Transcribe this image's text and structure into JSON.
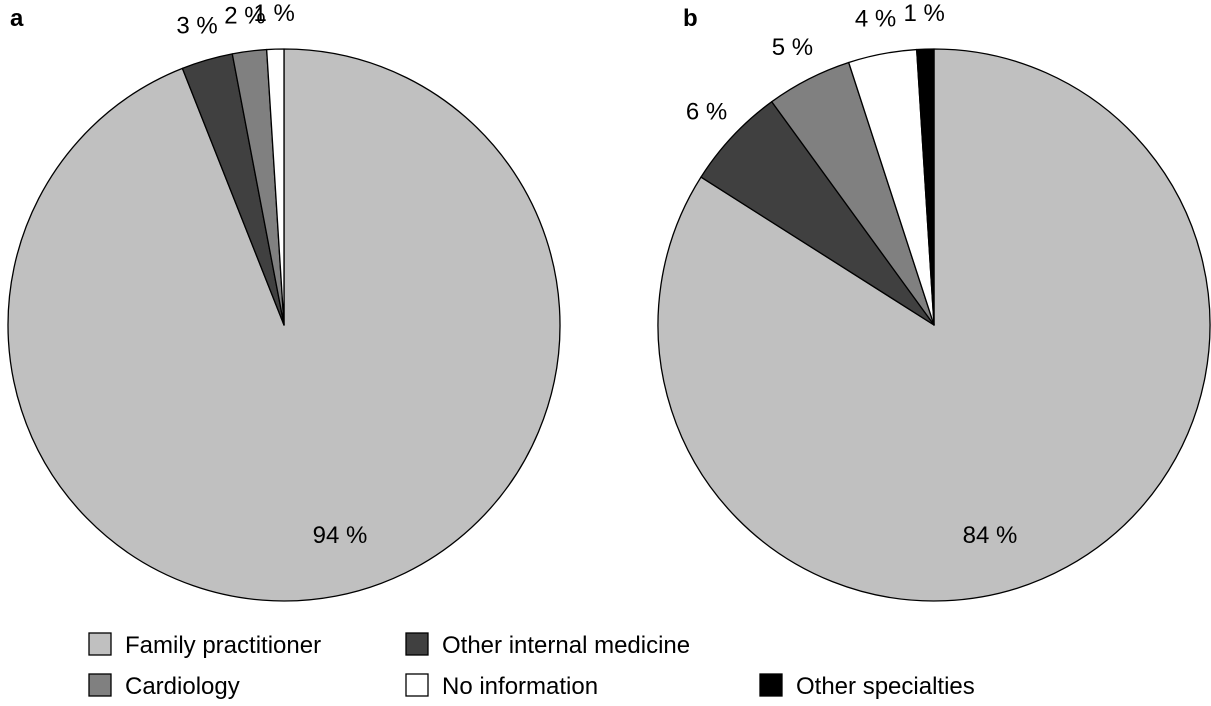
{
  "chart_data": [
    {
      "type": "pie",
      "panel_label": "a",
      "categories": [
        "Family practitioner",
        "Other internal medicine",
        "Cardiology",
        "No information"
      ],
      "values": [
        94,
        3,
        2,
        1
      ],
      "labels": [
        "94 %",
        "3 %",
        "2 %",
        "1 %"
      ],
      "start_angle": "top",
      "direction": "clockwise"
    },
    {
      "type": "pie",
      "panel_label": "b",
      "categories": [
        "Family practitioner",
        "Other internal medicine",
        "Cardiology",
        "No information",
        "Other specialties"
      ],
      "values": [
        84,
        6,
        5,
        4,
        1
      ],
      "labels": [
        "84 %",
        "6 %",
        "5 %",
        "4 %",
        "1 %"
      ],
      "start_angle": "top",
      "direction": "clockwise"
    }
  ],
  "legend": {
    "placement": "bottom",
    "items": [
      {
        "label": "Family practitioner",
        "color": "#c0c0c0"
      },
      {
        "label": "Other internal medicine",
        "color": "#404040"
      },
      {
        "label": "Cardiology",
        "color": "#808080"
      },
      {
        "label": "No information",
        "color": "#ffffff"
      },
      {
        "label": "Other specialties",
        "color": "#000000"
      }
    ]
  },
  "colors": {
    "Family practitioner": "#c0c0c0",
    "Other internal medicine": "#404040",
    "Cardiology": "#808080",
    "No information": "#ffffff",
    "Other specialties": "#000000",
    "outline": "#000000"
  }
}
